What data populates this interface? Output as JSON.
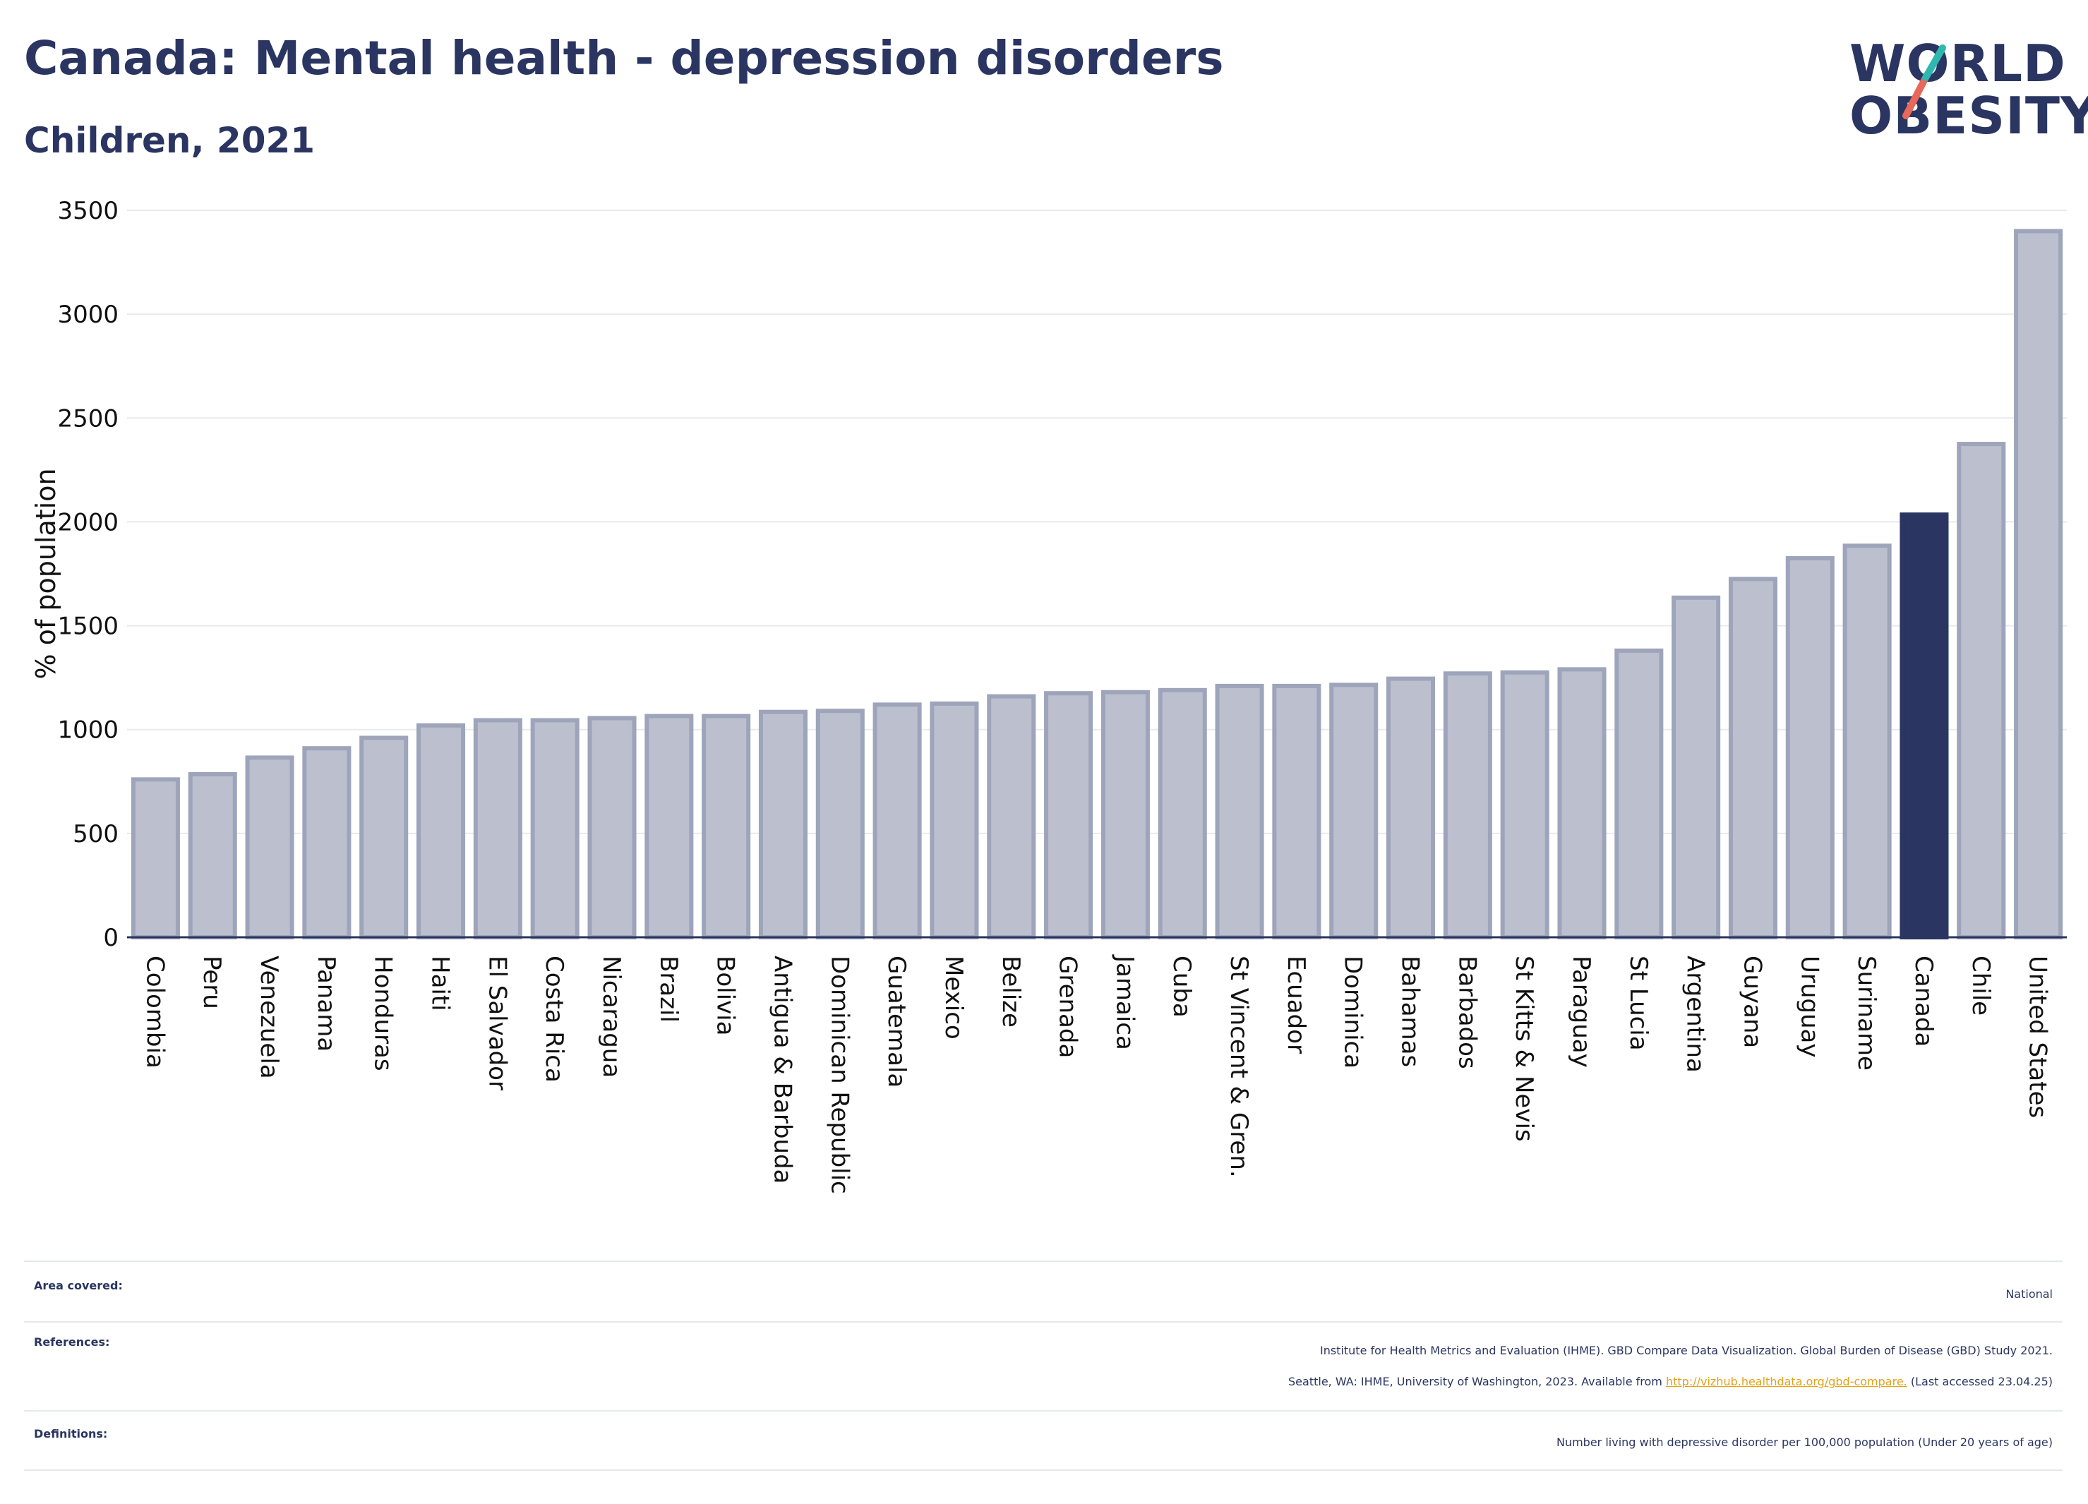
{
  "header": {
    "title": "Canada: Mental health - depression disorders",
    "subtitle": "Children, 2021"
  },
  "logo": {
    "line1": "WORLD",
    "line2": "OBESITY",
    "accent_teal": "#2fb8b0",
    "accent_red": "#e8685a"
  },
  "chart_data": {
    "type": "bar",
    "ylabel": "% of population",
    "ylim": [
      0,
      3500
    ],
    "yticks": [
      0,
      500,
      1000,
      1500,
      2000,
      2500,
      3000,
      3500
    ],
    "grid": true,
    "highlight": "Canada",
    "highlight_color": "#2b3561",
    "bar_color": "#bcc0ce",
    "bar_edge_color": "#9ea4ba",
    "categories": [
      "Colombia",
      "Peru",
      "Venezuela",
      "Panama",
      "Honduras",
      "Haiti",
      "El Salvador",
      "Costa Rica",
      "Nicaragua",
      "Brazil",
      "Bolivia",
      "Antigua & Barbuda",
      "Dominican Republic",
      "Guatemala",
      "Mexico",
      "Belize",
      "Grenada",
      "Jamaica",
      "Cuba",
      "St Vincent & Gren.",
      "Ecuador",
      "Dominica",
      "Bahamas",
      "Barbados",
      "St Kitts & Nevis",
      "Paraguay",
      "St Lucia",
      "Argentina",
      "Guyana",
      "Uruguay",
      "Suriname",
      "Canada",
      "Chile",
      "United States"
    ],
    "values": [
      760,
      785,
      865,
      910,
      960,
      1020,
      1045,
      1045,
      1055,
      1065,
      1065,
      1085,
      1090,
      1120,
      1125,
      1160,
      1175,
      1180,
      1190,
      1210,
      1210,
      1215,
      1245,
      1270,
      1275,
      1290,
      1380,
      1635,
      1725,
      1825,
      1885,
      2035,
      2375,
      3400
    ]
  },
  "info": {
    "area_label": "Area covered:",
    "area_value": "National",
    "references_label": "References:",
    "references_line1": "Institute for Health Metrics and Evaluation (IHME). GBD Compare Data Visualization. Global Burden of Disease (GBD) Study 2021.",
    "references_line2_pre": "Seattle, WA: IHME, University of Washington, 2023. Available from ",
    "references_link": "http://vizhub.healthdata.org/gbd-compare.",
    "references_line2_post": " (Last accessed 23.04.25)",
    "definitions_label": "Definitions:",
    "definitions_value": "Number living with depressive disorder per 100,000 population (Under 20 years of age)"
  }
}
